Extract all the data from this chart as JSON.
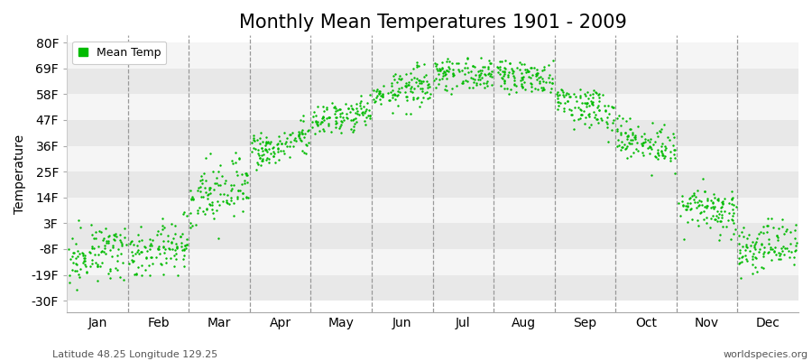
{
  "title": "Monthly Mean Temperatures 1901 - 2009",
  "ylabel": "Temperature",
  "xlabel_labels": [
    "Jan",
    "Feb",
    "Mar",
    "Apr",
    "May",
    "Jun",
    "Jul",
    "Aug",
    "Sep",
    "Oct",
    "Nov",
    "Dec"
  ],
  "yticks": [
    -30,
    -19,
    -8,
    3,
    14,
    25,
    36,
    47,
    58,
    69,
    80
  ],
  "ytick_labels": [
    "-30F",
    "-19F",
    "-8F",
    "3F",
    "14F",
    "25F",
    "36F",
    "47F",
    "58F",
    "69F",
    "80F"
  ],
  "ylim": [
    -35,
    83
  ],
  "dot_color": "#00BB00",
  "dot_size": 3,
  "legend_label": "Mean Temp",
  "bottom_left_text": "Latitude 48.25 Longitude 129.25",
  "bottom_right_text": "worldspecies.org",
  "background_color": "#ffffff",
  "band_color_light": "#e8e8e8",
  "band_color_white": "#f5f5f5",
  "title_fontsize": 15,
  "axis_fontsize": 10,
  "tick_fontsize": 10,
  "n_years": 109,
  "month_means_f": [
    -10,
    -8,
    15,
    37,
    48,
    60,
    67,
    65,
    53,
    37,
    9,
    -7
  ],
  "month_stds_f": [
    5.5,
    5.0,
    6.5,
    3.5,
    3.0,
    3.5,
    3.0,
    3.5,
    4.0,
    4.0,
    5.0,
    5.0
  ],
  "month_trend_f": [
    6,
    8,
    12,
    8,
    5,
    5,
    -2,
    -5,
    -8,
    -6,
    -5,
    4
  ]
}
